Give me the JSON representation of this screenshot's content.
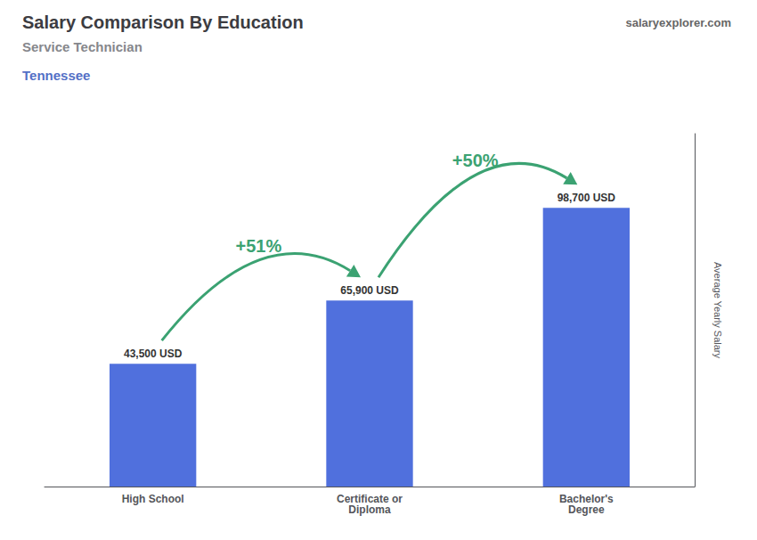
{
  "chart_data": {
    "type": "bar",
    "title": "Salary Comparison By Education",
    "subtitle": "Service Technician",
    "location": "Tennessee",
    "brand": "salaryexplorer.com",
    "ylabel": "Average Yearly Salary",
    "categories": [
      "High School",
      "Certificate or\nDiploma",
      "Bachelor's\nDegree"
    ],
    "values": [
      43500,
      65900,
      98700
    ],
    "value_labels": [
      "43,500 USD",
      "65,900 USD",
      "98,700 USD"
    ],
    "data_labels": true,
    "annotations": [
      "+51%",
      "+50%"
    ],
    "ylim": [
      0,
      125000
    ],
    "tick_labels": "x",
    "grid": false
  }
}
